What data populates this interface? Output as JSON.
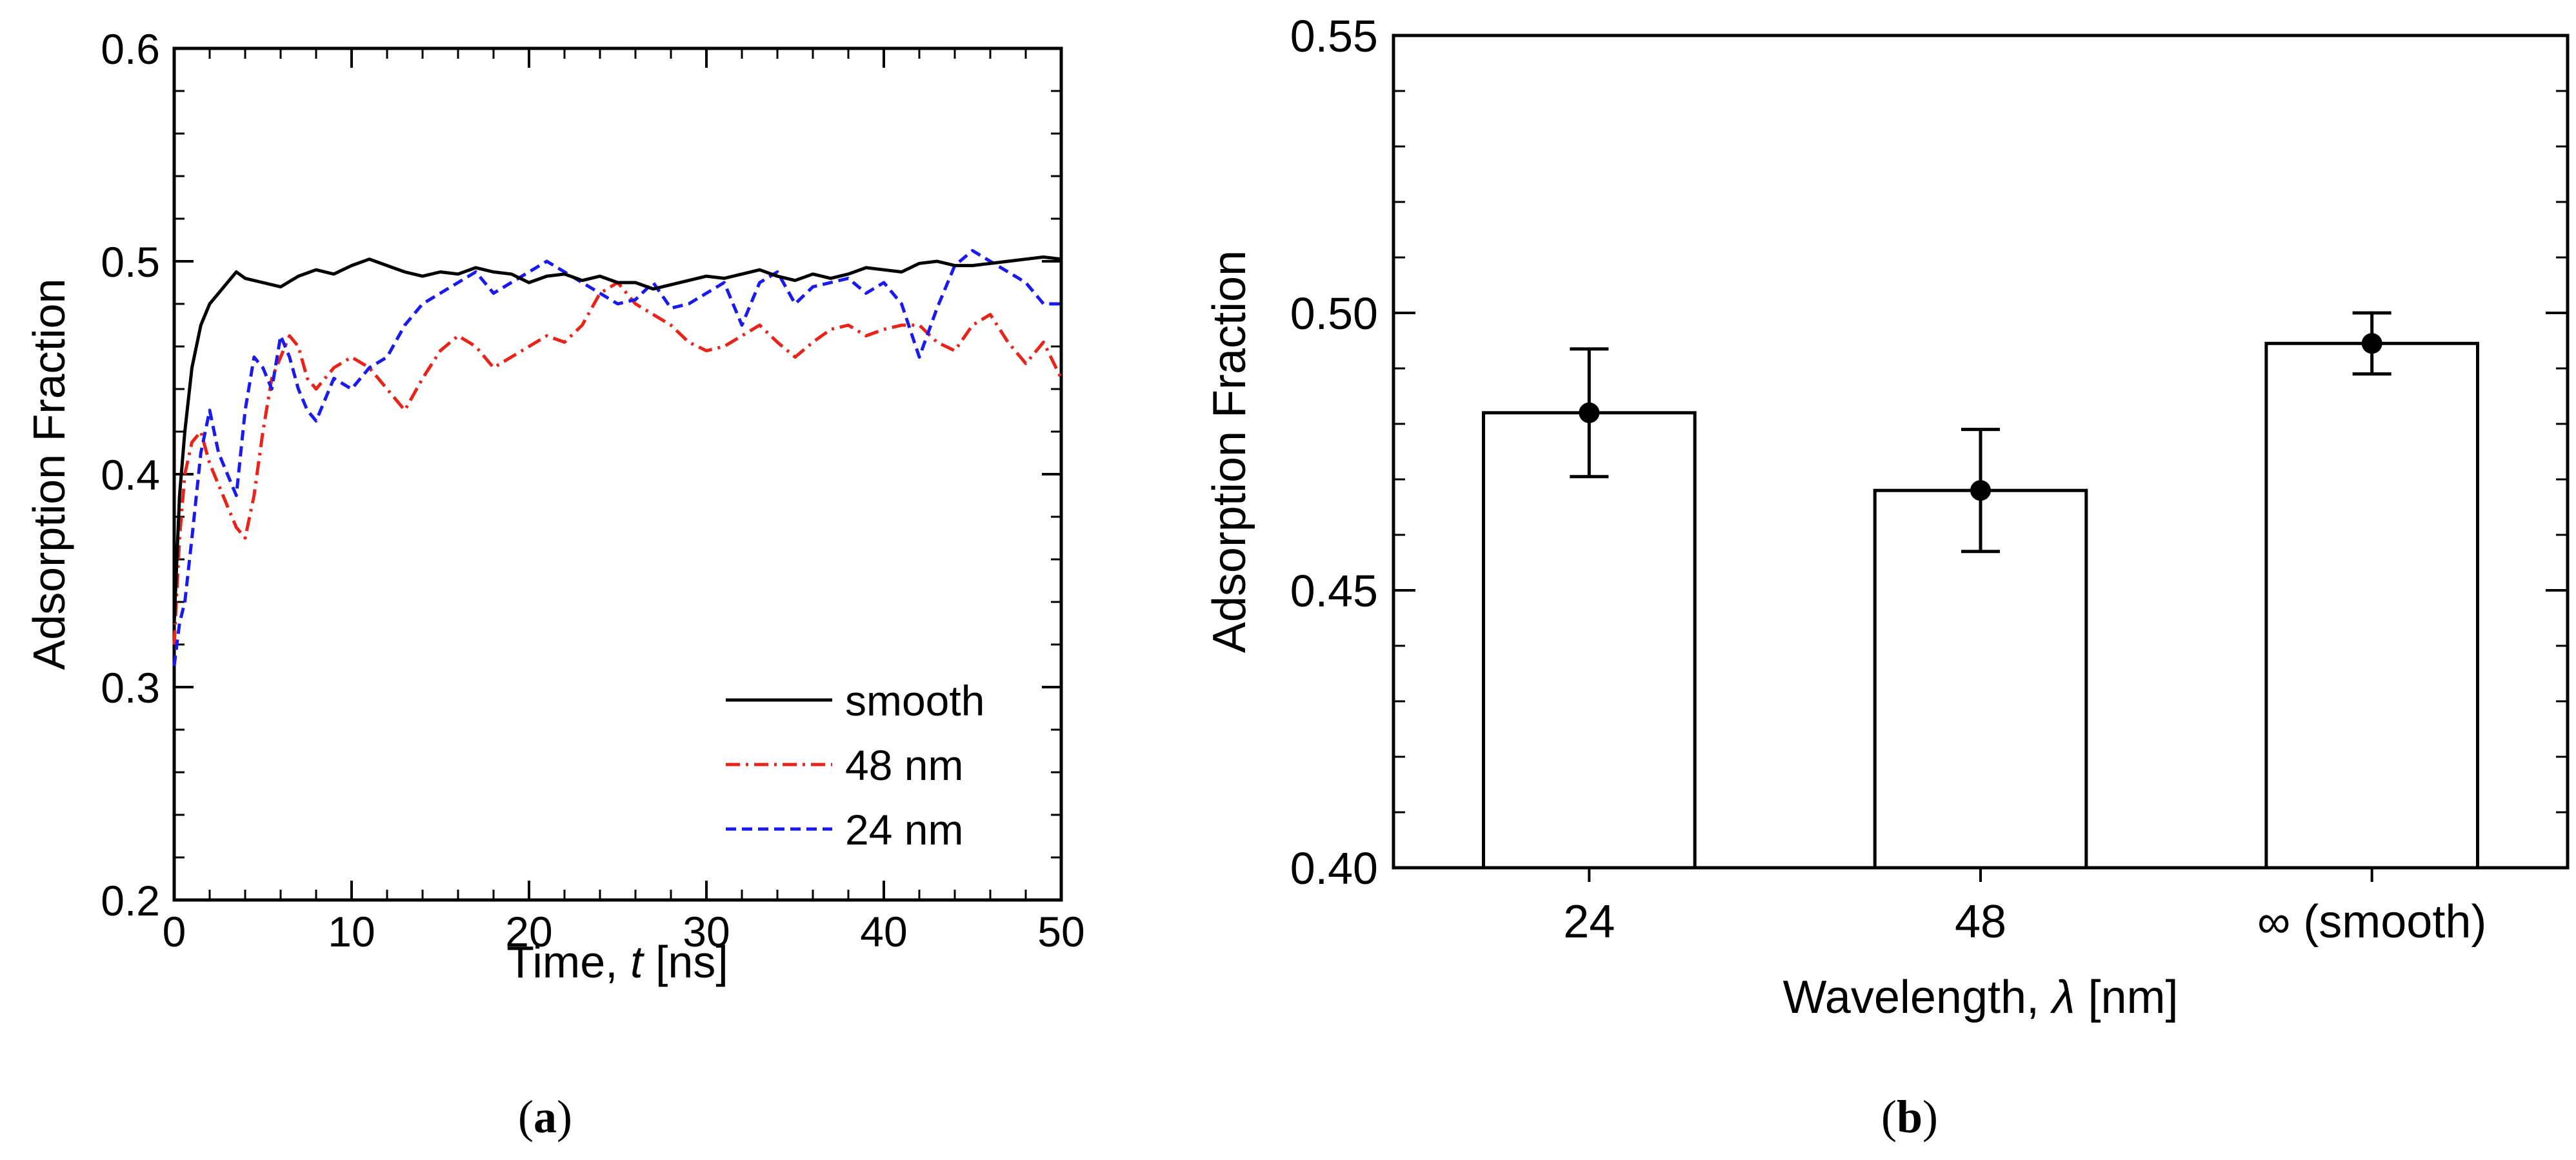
{
  "chart_data": [
    {
      "type": "line",
      "panel_label": "a",
      "xlabel_prefix": "Time, ",
      "xlabel_var": "t",
      "xlabel_suffix": " [ns]",
      "ylabel": "Adsorption Fraction",
      "xlim": [
        0,
        50
      ],
      "ylim": [
        0.2,
        0.6
      ],
      "xticks": [
        0,
        10,
        20,
        30,
        40,
        50
      ],
      "xtick_labels": [
        "0",
        "10",
        "20",
        "30",
        "40",
        "50"
      ],
      "yticks": [
        0.2,
        0.3,
        0.4,
        0.5,
        0.6
      ],
      "ytick_labels": [
        "0.2",
        "0.3",
        "0.4",
        "0.5",
        "0.6"
      ],
      "legend_position": "bottom-right",
      "series": [
        {
          "name": "smooth",
          "color": "#000000",
          "dash": "solid",
          "x": [
            0,
            0.3,
            0.6,
            1,
            1.5,
            2,
            2.5,
            3,
            3.5,
            4,
            5,
            6,
            7,
            8,
            9,
            10,
            11,
            12,
            13,
            14,
            15,
            16,
            17,
            18,
            19,
            20,
            21,
            22,
            23,
            24,
            25,
            26,
            27,
            28,
            29,
            30,
            31,
            32,
            33,
            34,
            35,
            36,
            37,
            38,
            39,
            40,
            41,
            42,
            43,
            44,
            45,
            46,
            47,
            48,
            49,
            50
          ],
          "y": [
            0.33,
            0.39,
            0.42,
            0.45,
            0.47,
            0.48,
            0.485,
            0.49,
            0.495,
            0.492,
            0.49,
            0.488,
            0.493,
            0.496,
            0.494,
            0.498,
            0.501,
            0.498,
            0.495,
            0.493,
            0.495,
            0.494,
            0.497,
            0.495,
            0.494,
            0.49,
            0.493,
            0.494,
            0.491,
            0.493,
            0.49,
            0.49,
            0.487,
            0.489,
            0.491,
            0.493,
            0.492,
            0.494,
            0.496,
            0.493,
            0.491,
            0.494,
            0.492,
            0.494,
            0.497,
            0.496,
            0.495,
            0.499,
            0.5,
            0.498,
            0.498,
            0.499,
            0.5,
            0.501,
            0.502,
            0.501
          ]
        },
        {
          "name": "48 nm",
          "color": "#e8231a",
          "dash": "dashdot",
          "x": [
            0,
            0.3,
            0.6,
            1,
            1.5,
            2,
            2.5,
            3,
            3.5,
            4,
            4.5,
            5,
            5.5,
            6,
            6.5,
            7,
            7.5,
            8,
            9,
            10,
            11,
            12,
            13,
            14,
            15,
            16,
            17,
            18,
            19,
            20,
            21,
            22,
            23,
            24,
            25,
            26,
            27,
            28,
            29,
            30,
            31,
            32,
            33,
            34,
            35,
            36,
            37,
            38,
            39,
            40,
            41,
            42,
            43,
            44,
            45,
            46,
            47,
            48,
            49,
            50
          ],
          "y": [
            0.32,
            0.37,
            0.4,
            0.415,
            0.42,
            0.405,
            0.395,
            0.385,
            0.375,
            0.37,
            0.39,
            0.42,
            0.445,
            0.455,
            0.465,
            0.46,
            0.445,
            0.44,
            0.45,
            0.455,
            0.45,
            0.44,
            0.43,
            0.445,
            0.458,
            0.465,
            0.46,
            0.45,
            0.455,
            0.46,
            0.465,
            0.462,
            0.47,
            0.485,
            0.49,
            0.48,
            0.475,
            0.47,
            0.462,
            0.458,
            0.46,
            0.465,
            0.47,
            0.462,
            0.455,
            0.462,
            0.468,
            0.47,
            0.465,
            0.468,
            0.47,
            0.47,
            0.462,
            0.458,
            0.47,
            0.475,
            0.462,
            0.452,
            0.462,
            0.445
          ]
        },
        {
          "name": "24 nm",
          "color": "#1a1aee",
          "dash": "dashed",
          "x": [
            0,
            0.3,
            0.6,
            1,
            1.5,
            2,
            2.5,
            3,
            3.5,
            4,
            4.5,
            5,
            5.5,
            6,
            6.5,
            7,
            7.5,
            8,
            9,
            10,
            11,
            12,
            13,
            14,
            15,
            16,
            17,
            18,
            19,
            20,
            21,
            22,
            23,
            24,
            25,
            26,
            27,
            28,
            29,
            30,
            31,
            32,
            33,
            34,
            35,
            36,
            37,
            38,
            39,
            40,
            41,
            42,
            43,
            44,
            45,
            46,
            47,
            48,
            49,
            50
          ],
          "y": [
            0.31,
            0.33,
            0.34,
            0.37,
            0.41,
            0.43,
            0.41,
            0.4,
            0.39,
            0.43,
            0.455,
            0.45,
            0.44,
            0.465,
            0.455,
            0.44,
            0.43,
            0.425,
            0.445,
            0.44,
            0.45,
            0.455,
            0.47,
            0.48,
            0.485,
            0.49,
            0.495,
            0.485,
            0.49,
            0.495,
            0.5,
            0.495,
            0.49,
            0.485,
            0.48,
            0.482,
            0.49,
            0.478,
            0.48,
            0.485,
            0.49,
            0.47,
            0.49,
            0.495,
            0.48,
            0.488,
            0.49,
            0.492,
            0.485,
            0.49,
            0.48,
            0.455,
            0.478,
            0.498,
            0.505,
            0.5,
            0.495,
            0.49,
            0.48,
            0.48
          ]
        }
      ]
    },
    {
      "type": "bar",
      "panel_label": "b",
      "categories": [
        "24",
        "48",
        "∞ (smooth)"
      ],
      "values": [
        0.482,
        0.468,
        0.4945
      ],
      "errors": [
        0.0115,
        0.011,
        0.0055
      ],
      "xlabel_prefix": "Wavelength, ",
      "xlabel_var": "λ",
      "xlabel_suffix": " [nm]",
      "ylabel": "Adsorption Fraction",
      "ylim": [
        0.4,
        0.55
      ],
      "yticks": [
        0.4,
        0.45,
        0.5,
        0.55
      ],
      "ytick_labels": [
        "0.40",
        "0.45",
        "0.50",
        "0.55"
      ]
    }
  ]
}
